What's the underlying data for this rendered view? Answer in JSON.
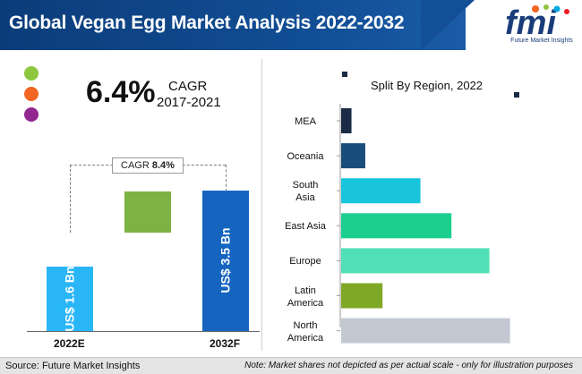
{
  "header": {
    "title": "Global Vegan Egg Market Analysis 2022-2032",
    "logo_text": "fmi",
    "logo_subtitle": "Future Market Insights"
  },
  "cagr_panel": {
    "value": "6.4%",
    "label": "CAGR",
    "years": "2017-2021",
    "legend_colors": [
      "#8dc63f",
      "#f26522",
      "#92278f"
    ]
  },
  "chart_data": [
    {
      "type": "bar",
      "orientation": "vertical",
      "categories": [
        "2022E",
        "2032F"
      ],
      "values": [
        1.6,
        3.5
      ],
      "value_labels": [
        "US$ 1.6 Bn",
        "US$ 3.5 Bn"
      ],
      "cagr_label": "CAGR",
      "cagr_value": "8.4%",
      "colors": [
        "#29b6f6",
        "#1565c0",
        "#7cb342"
      ]
    },
    {
      "type": "bar",
      "orientation": "horizontal",
      "title": "Split By Region, 2022",
      "categories": [
        "MEA",
        "Oceania",
        "South Asia",
        "East Asia",
        "Europe",
        "Latin America",
        "North America"
      ],
      "category_lines": [
        [
          "MEA"
        ],
        [
          "Oceania"
        ],
        [
          "South",
          "Asia"
        ],
        [
          "East Asia"
        ],
        [
          "Europe"
        ],
        [
          "Latin",
          "America"
        ],
        [
          "North",
          "America"
        ]
      ],
      "values": [
        3,
        7,
        23,
        32,
        43,
        12,
        49
      ],
      "colors": [
        "#1b2a45",
        "#1a4e7a",
        "#18c5dc",
        "#1ccf8f",
        "#4fe0b6",
        "#7fa826",
        "#c3c8d3"
      ]
    }
  ],
  "footer": {
    "source": "Source: Future Market Insights",
    "note": "Note: Market shares not depicted as per actual scale - only for illustration purposes"
  }
}
